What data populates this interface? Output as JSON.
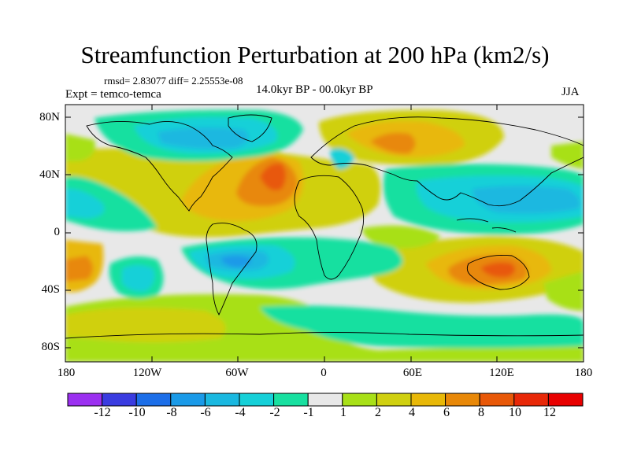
{
  "title": "Streamfunction Perturbation at 200 hPa (km2/s)",
  "stats": "rmsd= 2.83077  diff= 2.25553e-08",
  "experiment": "Expt = temco-temca",
  "period": "14.0kyr BP - 00.0kyr BP",
  "season": "JJA",
  "map": {
    "lat_range": [
      -90,
      90
    ],
    "lon_range": [
      -180,
      180
    ],
    "lat_ticks": [
      {
        "label": "80N",
        "value": 80
      },
      {
        "label": "40N",
        "value": 40
      },
      {
        "label": "0",
        "value": 0
      },
      {
        "label": "40S",
        "value": -40
      },
      {
        "label": "80S",
        "value": -80
      }
    ],
    "lon_ticks": [
      {
        "label": "180",
        "value": -180
      },
      {
        "label": "120W",
        "value": -120
      },
      {
        "label": "60W",
        "value": -60
      },
      {
        "label": "0",
        "value": 0
      },
      {
        "label": "60E",
        "value": 60
      },
      {
        "label": "120E",
        "value": 120
      },
      {
        "label": "180",
        "value": 180
      }
    ]
  },
  "colorbar": {
    "labels": [
      "-12",
      "-10",
      "-8",
      "-6",
      "-4",
      "-2",
      "-1",
      "1",
      "2",
      "4",
      "6",
      "8",
      "10",
      "12"
    ],
    "colors": [
      "#9b30f0",
      "#3a3ce0",
      "#1c6ee8",
      "#1a9ae8",
      "#1ab8e0",
      "#16d0d8",
      "#18e0a0",
      "#e8e8e8",
      "#a8e018",
      "#d0d010",
      "#e8b808",
      "#e88808",
      "#e85808",
      "#e82808",
      "#e80000"
    ]
  },
  "colors": {
    "background": "#e8e8e8",
    "coast": "#000000"
  }
}
